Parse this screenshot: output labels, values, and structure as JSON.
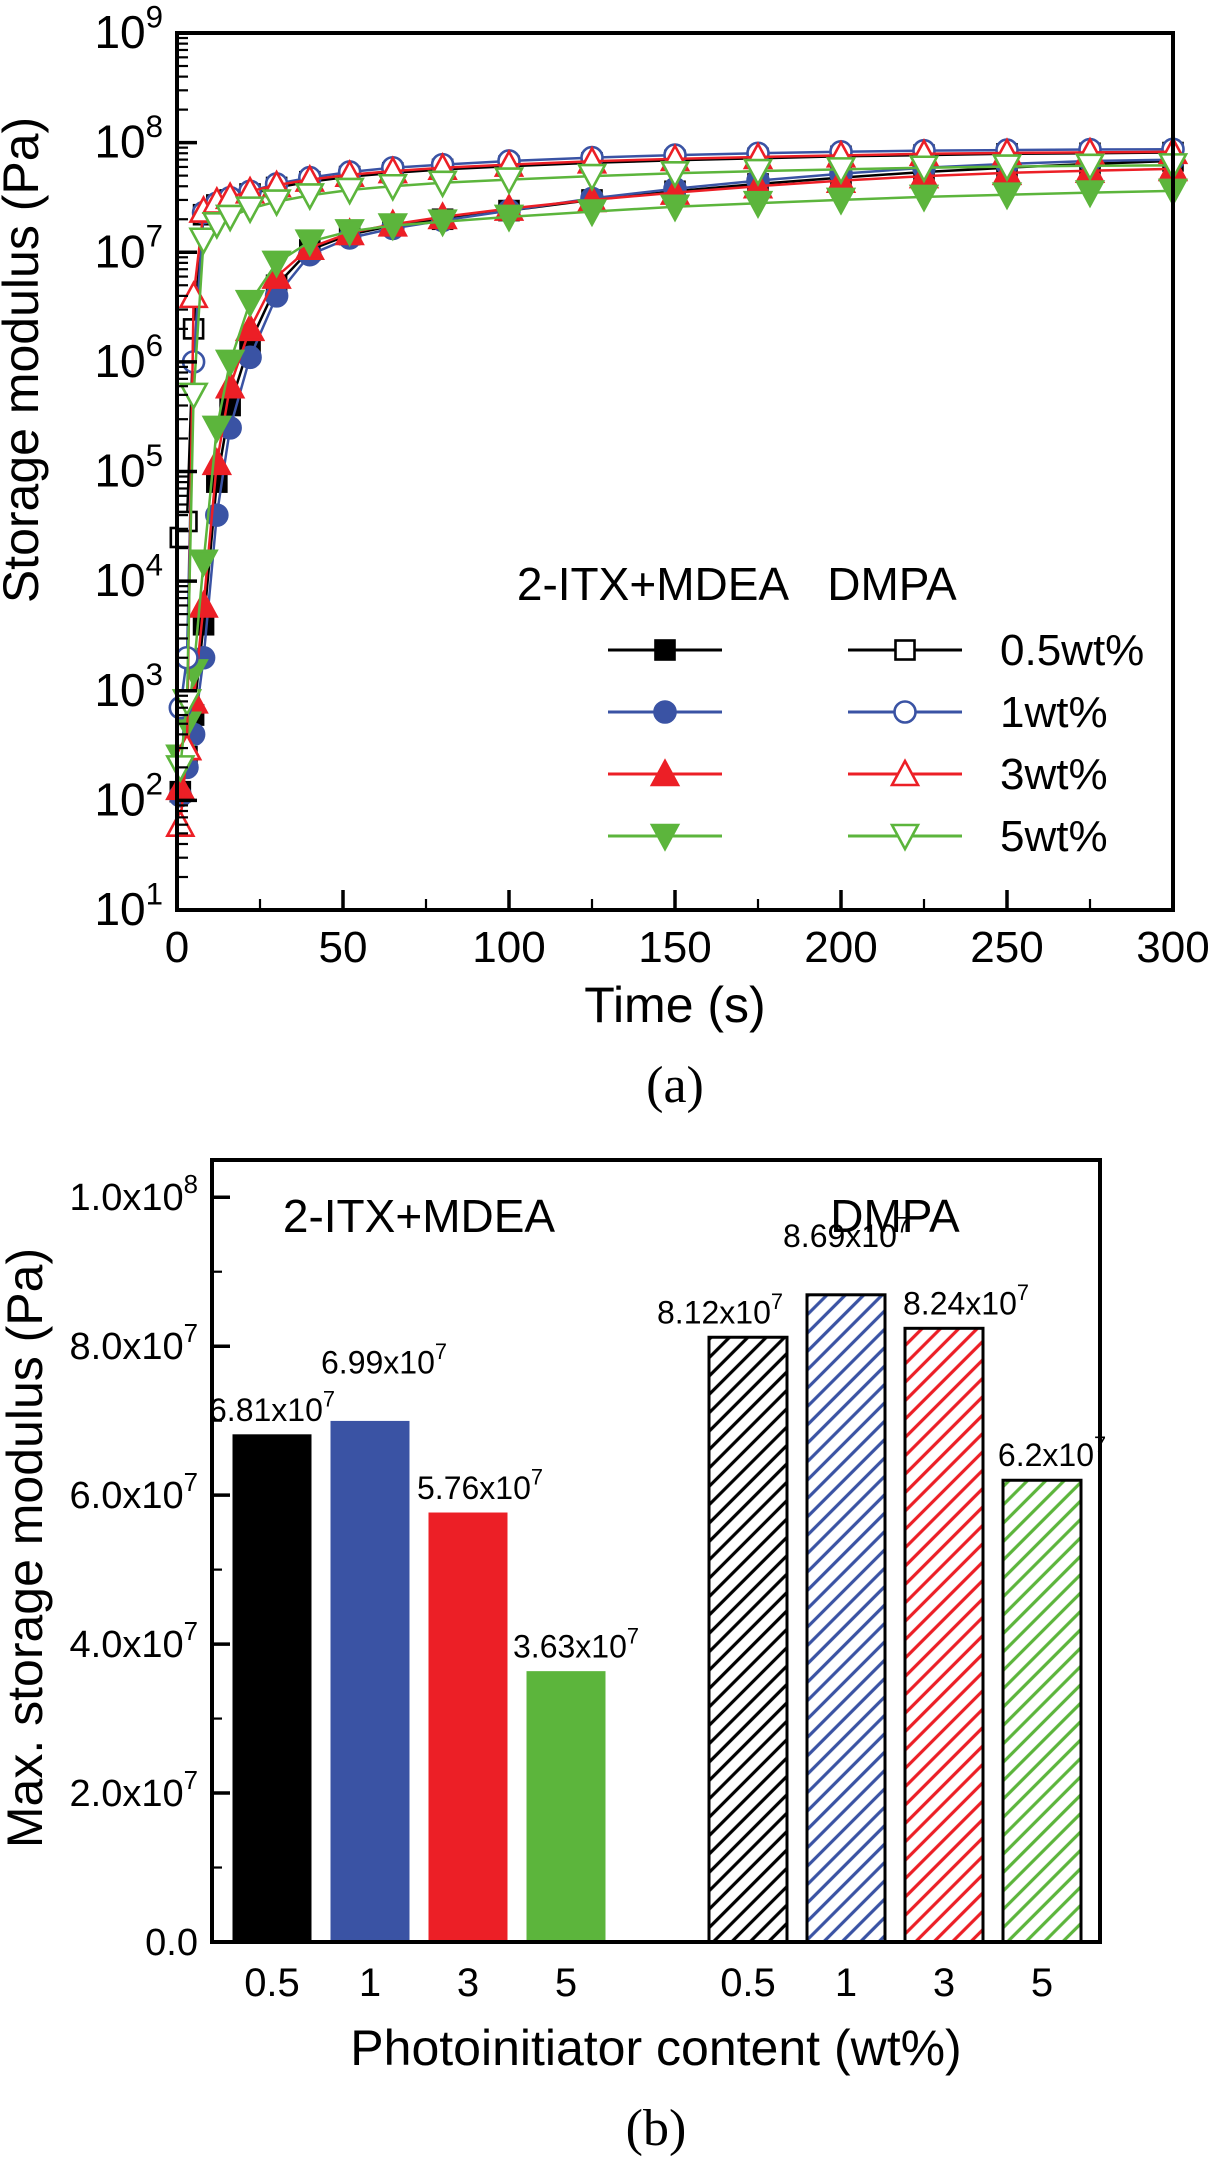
{
  "figure": {
    "panel_a_label": "(a)",
    "panel_b_label": "(b)"
  },
  "colors": {
    "black": "#000000",
    "blue": "#3A53A4",
    "red": "#EC1F26",
    "green": "#5CB53C"
  },
  "chart_data": [
    {
      "type": "line",
      "title": "",
      "xlabel": "Time (s)",
      "ylabel": "Storage modulus (Pa)",
      "xlim": [
        0,
        300
      ],
      "x_ticks": [
        0,
        50,
        100,
        150,
        200,
        250,
        300
      ],
      "x_minor_ticks": [
        25,
        75,
        125,
        175,
        225,
        275
      ],
      "y_scale": "log",
      "y_exp_range": [
        1,
        9
      ],
      "y_tick_labels": [
        "10^1",
        "10^2",
        "10^3",
        "10^4",
        "10^5",
        "10^6",
        "10^7",
        "10^8",
        "10^9"
      ],
      "grid": false,
      "legend": {
        "position": "inside-lower-right",
        "col1_header": "2-ITX+MDEA",
        "col2_header": "DMPA",
        "rows": [
          {
            "label": "0.5wt%",
            "color": "#000000",
            "marker": "square"
          },
          {
            "label": "1wt%",
            "color": "#3A53A4",
            "marker": "circle"
          },
          {
            "label": "3wt%",
            "color": "#EC1F26",
            "marker": "triangle-up"
          },
          {
            "label": "5wt%",
            "color": "#5CB53C",
            "marker": "triangle-down"
          }
        ]
      },
      "series": [
        {
          "name": "2-ITX+MDEA 0.5wt%",
          "group": "2-ITX+MDEA",
          "marker": "square",
          "filled": true,
          "color": "#000000",
          "points": [
            [
              1,
              120
            ],
            [
              3,
              250
            ],
            [
              5,
              600
            ],
            [
              8,
              4000
            ],
            [
              12,
              80000
            ],
            [
              16,
              400000
            ],
            [
              22,
              1500000.0
            ],
            [
              30,
              5000000.0
            ],
            [
              40,
              10500000.0
            ],
            [
              52,
              14500000.0
            ],
            [
              65,
              17500000.0
            ],
            [
              80,
              20000000.0
            ],
            [
              100,
              24000000.0
            ],
            [
              125,
              30000000.0
            ],
            [
              150,
              36000000.0
            ],
            [
              175,
              42000000.0
            ],
            [
              200,
              48000000.0
            ],
            [
              225,
              54000000.0
            ],
            [
              250,
              59000000.0
            ],
            [
              275,
              64000000.0
            ],
            [
              300,
              68100000.0
            ]
          ]
        },
        {
          "name": "2-ITX+MDEA 1wt%",
          "group": "2-ITX+MDEA",
          "marker": "circle",
          "filled": true,
          "color": "#3A53A4",
          "points": [
            [
              1,
              110
            ],
            [
              3,
              200
            ],
            [
              5,
              400
            ],
            [
              8,
              2000
            ],
            [
              12,
              40000
            ],
            [
              16,
              250000
            ],
            [
              22,
              1100000.0
            ],
            [
              30,
              4000000.0
            ],
            [
              40,
              9500000.0
            ],
            [
              52,
              13500000.0
            ],
            [
              65,
              16500000.0
            ],
            [
              80,
              19500000.0
            ],
            [
              100,
              24000000.0
            ],
            [
              125,
              31000000.0
            ],
            [
              150,
              38000000.0
            ],
            [
              175,
              45000000.0
            ],
            [
              200,
              52000000.0
            ],
            [
              225,
              59000000.0
            ],
            [
              250,
              64000000.0
            ],
            [
              275,
              68000000.0
            ],
            [
              300,
              69900000.0
            ]
          ]
        },
        {
          "name": "2-ITX+MDEA 3wt%",
          "group": "2-ITX+MDEA",
          "marker": "triangle-up",
          "filled": true,
          "color": "#EC1F26",
          "points": [
            [
              1,
              130
            ],
            [
              3,
              300
            ],
            [
              5,
              800
            ],
            [
              8,
              6000
            ],
            [
              12,
              120000
            ],
            [
              16,
              600000
            ],
            [
              22,
              2000000.0
            ],
            [
              30,
              6000000.0
            ],
            [
              40,
              11000000.0
            ],
            [
              52,
              15000000.0
            ],
            [
              65,
              18000000.0
            ],
            [
              80,
              21000000.0
            ],
            [
              100,
              25000000.0
            ],
            [
              125,
              30000000.0
            ],
            [
              150,
              35000000.0
            ],
            [
              175,
              40000000.0
            ],
            [
              200,
              45000000.0
            ],
            [
              225,
              49500000.0
            ],
            [
              250,
              53000000.0
            ],
            [
              275,
              55500000.0
            ],
            [
              300,
              57600000.0
            ]
          ]
        },
        {
          "name": "2-ITX+MDEA 5wt%",
          "group": "2-ITX+MDEA",
          "marker": "triangle-down",
          "filled": true,
          "color": "#5CB53C",
          "points": [
            [
              1,
              250
            ],
            [
              3,
              500
            ],
            [
              5,
              1500
            ],
            [
              8,
              15000
            ],
            [
              12,
              250000
            ],
            [
              16,
              1000000.0
            ],
            [
              22,
              3500000.0
            ],
            [
              30,
              8000000.0
            ],
            [
              40,
              12500000.0
            ],
            [
              52,
              15500000.0
            ],
            [
              65,
              17500000.0
            ],
            [
              80,
              19000000.0
            ],
            [
              100,
              21000000.0
            ],
            [
              125,
              23500000.0
            ],
            [
              150,
              26000000.0
            ],
            [
              175,
              28000000.0
            ],
            [
              200,
              30000000.0
            ],
            [
              225,
              32000000.0
            ],
            [
              250,
              33500000.0
            ],
            [
              275,
              35000000.0
            ],
            [
              300,
              36300000.0
            ]
          ]
        },
        {
          "name": "DMPA 0.5wt%",
          "group": "DMPA",
          "marker": "square",
          "filled": false,
          "color": "#000000",
          "points": [
            [
              1,
              25000
            ],
            [
              3,
              35000
            ],
            [
              5,
              2000000.0
            ],
            [
              8,
              22000000.0
            ],
            [
              12,
              27000000.0
            ],
            [
              16,
              30000000.0
            ],
            [
              22,
              34000000.0
            ],
            [
              30,
              39000000.0
            ],
            [
              40,
              44000000.0
            ],
            [
              52,
              49000000.0
            ],
            [
              65,
              53000000.0
            ],
            [
              80,
              57000000.0
            ],
            [
              100,
              61000000.0
            ],
            [
              125,
              65500000.0
            ],
            [
              150,
              69000000.0
            ],
            [
              175,
              72000000.0
            ],
            [
              200,
              75000000.0
            ],
            [
              225,
              77000000.0
            ],
            [
              250,
              79000000.0
            ],
            [
              275,
              80000000.0
            ],
            [
              300,
              81200000.0
            ]
          ]
        },
        {
          "name": "DMPA 1wt%",
          "group": "DMPA",
          "marker": "circle",
          "filled": false,
          "color": "#3A53A4",
          "points": [
            [
              1,
              700
            ],
            [
              3,
              2000
            ],
            [
              5,
              1000000.0
            ],
            [
              8,
              23000000.0
            ],
            [
              12,
              28000000.0
            ],
            [
              16,
              31500000.0
            ],
            [
              22,
              36000000.0
            ],
            [
              30,
              42000000.0
            ],
            [
              40,
              48000000.0
            ],
            [
              52,
              54000000.0
            ],
            [
              65,
              59000000.0
            ],
            [
              80,
              63000000.0
            ],
            [
              100,
              68000000.0
            ],
            [
              125,
              73000000.0
            ],
            [
              150,
              77000000.0
            ],
            [
              175,
              80000000.0
            ],
            [
              200,
              82500000.0
            ],
            [
              225,
              84500000.0
            ],
            [
              250,
              85500000.0
            ],
            [
              275,
              86500000.0
            ],
            [
              300,
              86900000.0
            ]
          ]
        },
        {
          "name": "DMPA 3wt%",
          "group": "DMPA",
          "marker": "triangle-up",
          "filled": false,
          "color": "#EC1F26",
          "points": [
            [
              1,
              60
            ],
            [
              3,
              300
            ],
            [
              5,
              4000000.0
            ],
            [
              8,
              24000000.0
            ],
            [
              12,
              29000000.0
            ],
            [
              16,
              32000000.0
            ],
            [
              22,
              36000000.0
            ],
            [
              30,
              41000000.0
            ],
            [
              40,
              46000000.0
            ],
            [
              52,
              51000000.0
            ],
            [
              65,
              55000000.0
            ],
            [
              80,
              59000000.0
            ],
            [
              100,
              63000000.0
            ],
            [
              125,
              67500000.0
            ],
            [
              150,
              71000000.0
            ],
            [
              175,
              74000000.0
            ],
            [
              200,
              76500000.0
            ],
            [
              225,
              79000000.0
            ],
            [
              250,
              80500000.0
            ],
            [
              275,
              81500000.0
            ],
            [
              300,
              82400000.0
            ]
          ]
        },
        {
          "name": "DMPA 5wt%",
          "group": "DMPA",
          "marker": "triangle-down",
          "filled": false,
          "color": "#5CB53C",
          "points": [
            [
              1,
              200
            ],
            [
              3,
              800
            ],
            [
              5,
              500000
            ],
            [
              8,
              13000000.0
            ],
            [
              12,
              18000000.0
            ],
            [
              16,
              21000000.0
            ],
            [
              22,
              25000000.0
            ],
            [
              30,
              29000000.0
            ],
            [
              40,
              33000000.0
            ],
            [
              52,
              37000000.0
            ],
            [
              65,
              40000000.0
            ],
            [
              80,
              43000000.0
            ],
            [
              100,
              46000000.0
            ],
            [
              125,
              49500000.0
            ],
            [
              150,
              52500000.0
            ],
            [
              175,
              55000000.0
            ],
            [
              200,
              57000000.0
            ],
            [
              225,
              59000000.0
            ],
            [
              250,
              60500000.0
            ],
            [
              275,
              61500000.0
            ],
            [
              300,
              62000000.0
            ]
          ]
        }
      ]
    },
    {
      "type": "bar",
      "title": "",
      "xlabel": "Photoinitiator content (wt%)",
      "ylabel": "Max. storage modulus (Pa)",
      "ylim": [
        0,
        105000000.0
      ],
      "grid": false,
      "group_headers": [
        "2-ITX+MDEA",
        "DMPA"
      ],
      "y_ticks": [
        {
          "v": 0,
          "label": "0.0"
        },
        {
          "v": 20000000.0,
          "label": "2.0x10^7"
        },
        {
          "v": 40000000.0,
          "label": "4.0x10^7"
        },
        {
          "v": 60000000.0,
          "label": "6.0x10^7"
        },
        {
          "v": 80000000.0,
          "label": "8.0x10^7"
        },
        {
          "v": 100000000.0,
          "label": "1.0x10^8"
        }
      ],
      "y_minor_ticks": [
        10000000.0,
        30000000.0,
        50000000.0,
        70000000.0,
        90000000.0
      ],
      "categories": [
        "0.5",
        "1",
        "3",
        "5",
        "0.5",
        "1",
        "3",
        "5"
      ],
      "bars": [
        {
          "category": "0.5",
          "group": "2-ITX+MDEA",
          "value": 68100000.0,
          "label": "6.81x10^7",
          "color": "#000000",
          "hatched": false,
          "label_dx": 0,
          "label_dy": 0
        },
        {
          "category": "1",
          "group": "2-ITX+MDEA",
          "value": 69900000.0,
          "label": "6.99x10^7",
          "color": "#3A53A4",
          "hatched": false,
          "label_dx": 14,
          "label_dy": -34
        },
        {
          "category": "3",
          "group": "2-ITX+MDEA",
          "value": 57600000.0,
          "label": "5.76x10^7",
          "color": "#EC1F26",
          "hatched": false,
          "label_dx": 12,
          "label_dy": 0
        },
        {
          "category": "5",
          "group": "2-ITX+MDEA",
          "value": 36300000.0,
          "label": "3.63x10^7",
          "color": "#5CB53C",
          "hatched": false,
          "label_dx": 10,
          "label_dy": 0
        },
        {
          "category": "0.5",
          "group": "DMPA",
          "value": 81200000.0,
          "label": "8.12x10^7",
          "color": "#000000",
          "hatched": true,
          "label_dx": -28,
          "label_dy": 0
        },
        {
          "category": "1",
          "group": "DMPA",
          "value": 86900000.0,
          "label": "8.69x10^7",
          "color": "#3A53A4",
          "hatched": true,
          "label_dx": 0,
          "label_dy": -34
        },
        {
          "category": "3",
          "group": "DMPA",
          "value": 82400000.0,
          "label": "8.24x10^7",
          "color": "#EC1F26",
          "hatched": true,
          "label_dx": 22,
          "label_dy": 0
        },
        {
          "category": "5",
          "group": "DMPA",
          "value": 62000000.0,
          "label": "6.2x10^7",
          "color": "#5CB53C",
          "hatched": true,
          "label_dx": 10,
          "label_dy": 0
        }
      ]
    }
  ]
}
